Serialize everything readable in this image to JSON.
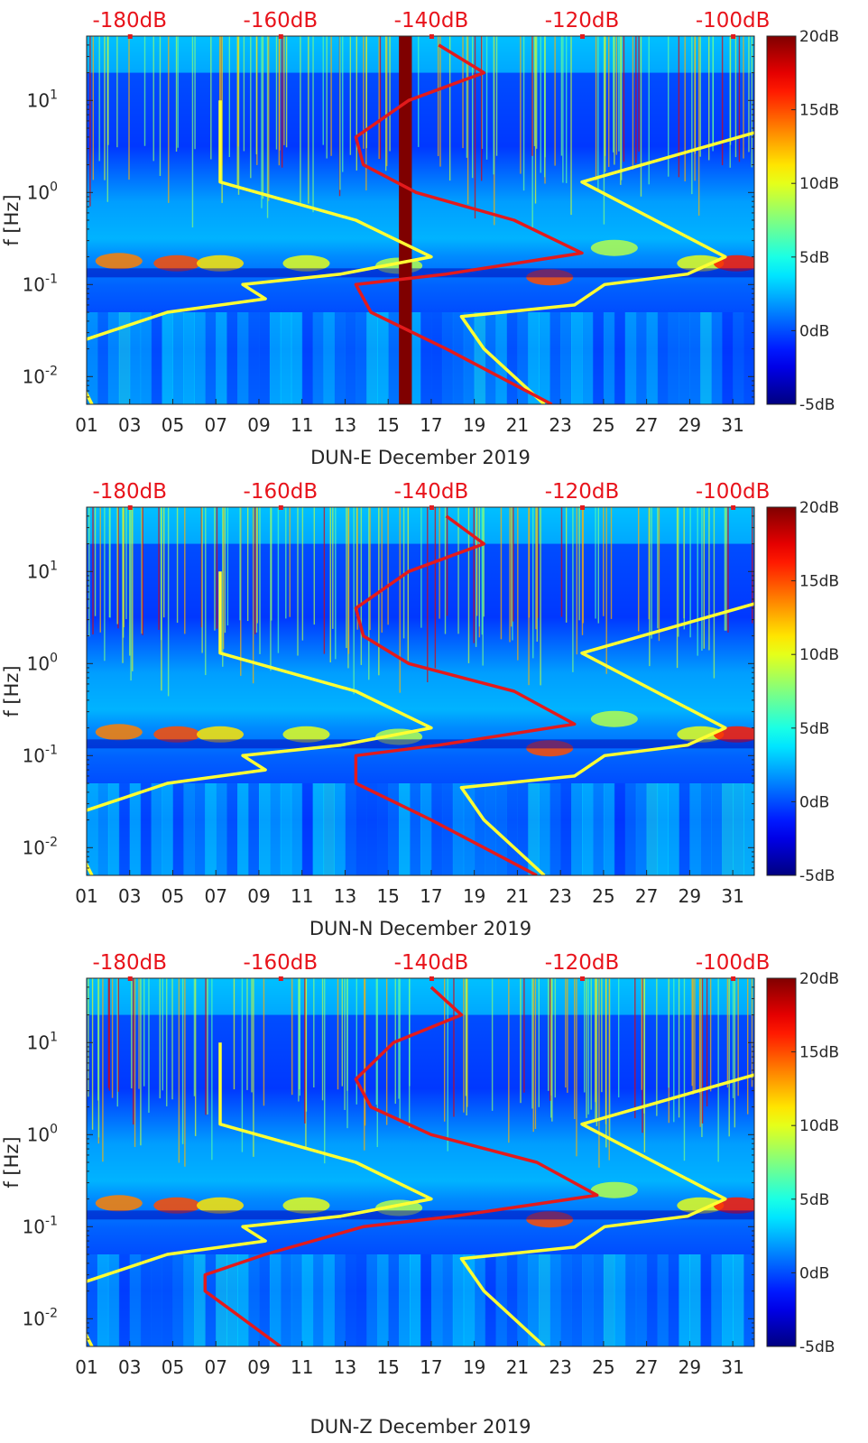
{
  "figure": {
    "time_axis": {
      "unit": "day of December 2019",
      "range": [
        1,
        32
      ],
      "ticks": [
        "01",
        "03",
        "05",
        "07",
        "09",
        "11",
        "13",
        "15",
        "17",
        "19",
        "21",
        "23",
        "25",
        "27",
        "29",
        "31"
      ]
    },
    "freq_axis": {
      "label": "f [Hz]",
      "scale": "log",
      "range_hz": [
        0.005,
        50
      ],
      "ticks": [
        {
          "value": 0.01,
          "base": "10",
          "exp": "-2"
        },
        {
          "value": 0.1,
          "base": "10",
          "exp": "-1"
        },
        {
          "value": 1,
          "base": "10",
          "exp": "0"
        },
        {
          "value": 10,
          "base": "10",
          "exp": "1"
        }
      ]
    },
    "psd_axis": {
      "ticks": [
        "-180dB",
        "-160dB",
        "-140dB",
        "-120dB",
        "-100dB"
      ],
      "tick_days": [
        3.0,
        10.0,
        17.0,
        24.0,
        31.0
      ]
    },
    "colorbar": {
      "colormap": "jet",
      "range_db": [
        -5,
        20
      ],
      "ticks": [
        "20dB",
        "15dB",
        "10dB",
        "5dB",
        "0dB",
        "-5dB"
      ]
    },
    "colors": {
      "noise_model": "#ffff33",
      "median_psd": "#e31a1c",
      "axis": "#262626"
    }
  },
  "chart_data": [
    {
      "type": "heatmap",
      "title": "",
      "xlabel": "DUN-E December 2019",
      "ylabel": "f [Hz]",
      "xlim": [
        1,
        32
      ],
      "ylim_hz": [
        0.005,
        50
      ],
      "color_scale_db": [
        -5,
        20
      ],
      "z_description": "spectrogram (dB relative) of channel DUN-E, days 01-31 December 2019",
      "features": [
        "strong microseism band near 0.15-0.2 Hz",
        "dark red data gap near day 15.5-16"
      ],
      "series": [
        {
          "name": "noise model (low)",
          "color": "#ffff33",
          "freq_hz": [
            10,
            1.3,
            0.5,
            0.2,
            0.13,
            0.1,
            0.07,
            0.05,
            0.025,
            0.015,
            0.005
          ],
          "psd_db": [
            -168,
            -168,
            -150,
            -140,
            -152,
            -165,
            -162,
            -175,
            -186,
            -188,
            -185
          ]
        },
        {
          "name": "noise model (high)",
          "color": "#ffff33",
          "freq_hz": [
            10,
            4.5,
            1.3,
            0.2,
            0.13,
            0.1,
            0.06,
            0.045,
            0.02,
            0.005
          ],
          "psd_db": [
            -91,
            -97,
            -120,
            -101,
            -106,
            -117,
            -121,
            -136,
            -133,
            -125
          ]
        },
        {
          "name": "median PSD",
          "color": "#e31a1c",
          "freq_hz": [
            40,
            20,
            10,
            4,
            2,
            1,
            0.5,
            0.22,
            0.13,
            0.1,
            0.05,
            0.02,
            0.005
          ],
          "psd_db": [
            -139,
            -133,
            -143,
            -150,
            -149,
            -142,
            -129,
            -120,
            -138,
            -150,
            -148,
            -138,
            -124
          ]
        }
      ]
    },
    {
      "type": "heatmap",
      "title": "",
      "xlabel": "DUN-N December 2019",
      "ylabel": "f [Hz]",
      "xlim": [
        1,
        32
      ],
      "ylim_hz": [
        0.005,
        50
      ],
      "color_scale_db": [
        -5,
        20
      ],
      "z_description": "spectrogram (dB relative) of channel DUN-N, days 01-31 December 2019",
      "features": [
        "strong microseism band near 0.15-0.2 Hz"
      ],
      "series": [
        {
          "name": "noise model (low)",
          "color": "#ffff33",
          "freq_hz": [
            10,
            1.3,
            0.5,
            0.2,
            0.13,
            0.1,
            0.07,
            0.05,
            0.025,
            0.015,
            0.005
          ],
          "psd_db": [
            -168,
            -168,
            -150,
            -140,
            -152,
            -165,
            -162,
            -175,
            -186,
            -188,
            -185
          ]
        },
        {
          "name": "noise model (high)",
          "color": "#ffff33",
          "freq_hz": [
            10,
            4.5,
            1.3,
            0.2,
            0.13,
            0.1,
            0.06,
            0.045,
            0.02,
            0.005
          ],
          "psd_db": [
            -91,
            -97,
            -120,
            -101,
            -106,
            -117,
            -121,
            -136,
            -133,
            -125
          ]
        },
        {
          "name": "median PSD",
          "color": "#e31a1c",
          "freq_hz": [
            40,
            20,
            10,
            4,
            2,
            1,
            0.5,
            0.22,
            0.13,
            0.1,
            0.05,
            0.02,
            0.005
          ],
          "psd_db": [
            -138,
            -133,
            -143,
            -150,
            -149,
            -143,
            -129,
            -121,
            -139,
            -150,
            -150,
            -140,
            -126
          ]
        }
      ]
    },
    {
      "type": "heatmap",
      "title": "",
      "xlabel": "DUN-Z December 2019",
      "ylabel": "f [Hz]",
      "xlim": [
        1,
        32
      ],
      "ylim_hz": [
        0.005,
        50
      ],
      "color_scale_db": [
        -5,
        20
      ],
      "z_description": "spectrogram (dB relative) of channel DUN-Z, days 01-31 December 2019",
      "features": [
        "strong microseism band near 0.15-0.2 Hz"
      ],
      "series": [
        {
          "name": "noise model (low)",
          "color": "#ffff33",
          "freq_hz": [
            10,
            1.3,
            0.5,
            0.2,
            0.13,
            0.1,
            0.07,
            0.05,
            0.025,
            0.015,
            0.005
          ],
          "psd_db": [
            -168,
            -168,
            -150,
            -140,
            -152,
            -165,
            -162,
            -175,
            -186,
            -188,
            -185
          ]
        },
        {
          "name": "noise model (high)",
          "color": "#ffff33",
          "freq_hz": [
            10,
            4.5,
            1.3,
            0.2,
            0.13,
            0.1,
            0.06,
            0.045,
            0.02,
            0.005
          ],
          "psd_db": [
            -91,
            -97,
            -120,
            -101,
            -106,
            -117,
            -121,
            -136,
            -133,
            -125
          ]
        },
        {
          "name": "median PSD",
          "color": "#e31a1c",
          "freq_hz": [
            40,
            20,
            10,
            4,
            2,
            1,
            0.5,
            0.22,
            0.13,
            0.1,
            0.05,
            0.03,
            0.02,
            0.005
          ],
          "psd_db": [
            -140,
            -136,
            -145,
            -150,
            -148,
            -140,
            -126,
            -118,
            -137,
            -149,
            -162,
            -170,
            -170,
            -160
          ]
        }
      ]
    }
  ]
}
